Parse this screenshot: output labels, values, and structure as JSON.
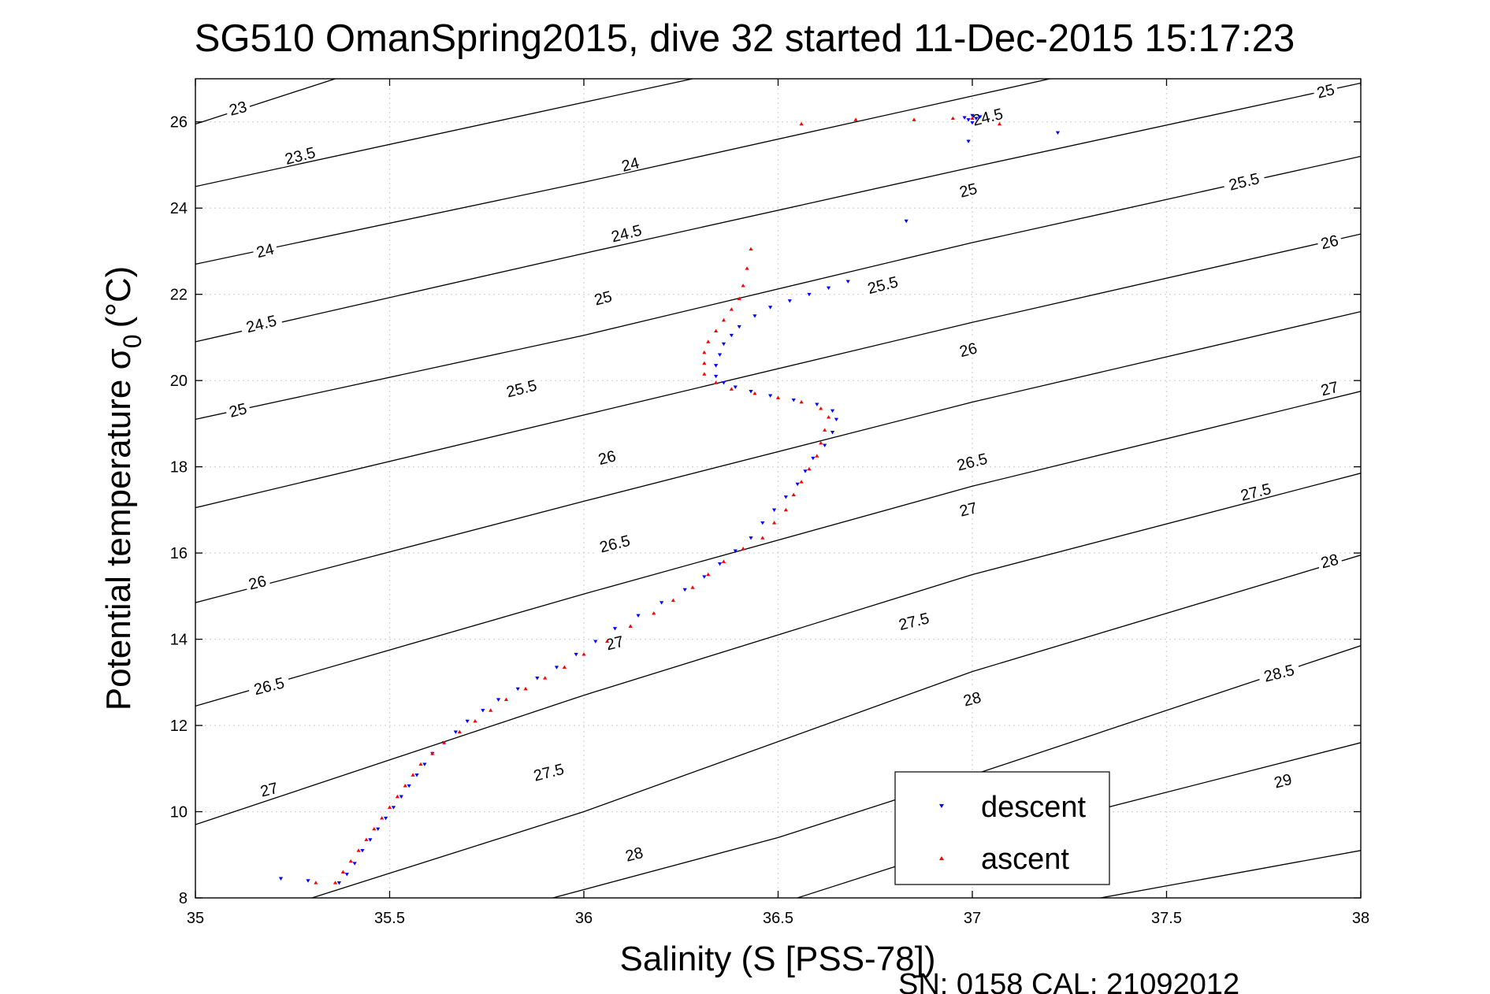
{
  "chart_data": {
    "type": "scatter",
    "title": "SG510 OmanSpring2015, dive 32 started 11-Dec-2015 15:17:23",
    "xlabel": "Salinity (S [PSS-78])",
    "ylabel_main": "Potential temperature σ",
    "ylabel_sub": "0",
    "ylabel_unit": "(°C)",
    "footer": "SN: 0158  CAL: 21092012",
    "xlim": [
      35,
      38
    ],
    "ylim": [
      8,
      27
    ],
    "xticks": [
      35,
      35.5,
      36,
      36.5,
      37,
      37.5,
      38
    ],
    "xtick_labels": [
      "35",
      "35.5",
      "36",
      "36.5",
      "37",
      "37.5",
      "38"
    ],
    "yticks": [
      8,
      10,
      12,
      14,
      16,
      18,
      20,
      22,
      24,
      26
    ],
    "ytick_labels": [
      "8",
      "10",
      "12",
      "14",
      "16",
      "18",
      "20",
      "22",
      "24",
      "26"
    ],
    "grid": true,
    "legend_position": "bottom-right",
    "density_contours": [
      {
        "label": "23",
        "points": [
          [
            35,
            25.95
          ],
          [
            35.36,
            27
          ]
        ]
      },
      {
        "label": "23.5",
        "points": [
          [
            35,
            24.5
          ],
          [
            36.28,
            27
          ]
        ]
      },
      {
        "label": "24",
        "points": [
          [
            35,
            22.7
          ],
          [
            36.0,
            24.6
          ],
          [
            37.0,
            26.6
          ],
          [
            37.2,
            27
          ]
        ]
      },
      {
        "label": "24.5",
        "points": [
          [
            35,
            20.9
          ],
          [
            36.0,
            22.95
          ],
          [
            37.0,
            24.95
          ],
          [
            38,
            26.9
          ]
        ]
      },
      {
        "label": "25",
        "points": [
          [
            35,
            19.1
          ],
          [
            36.0,
            21.05
          ],
          [
            37.0,
            23.2
          ],
          [
            38,
            25.2
          ]
        ]
      },
      {
        "label": "25.5",
        "points": [
          [
            35,
            17.05
          ],
          [
            36.0,
            19.2
          ],
          [
            37.0,
            21.35
          ],
          [
            38,
            23.4
          ]
        ]
      },
      {
        "label": "26",
        "points": [
          [
            35,
            14.85
          ],
          [
            36.0,
            17.2
          ],
          [
            37.0,
            19.5
          ],
          [
            38,
            21.6
          ]
        ]
      },
      {
        "label": "26.5",
        "points": [
          [
            35,
            12.45
          ],
          [
            36.0,
            15.05
          ],
          [
            37.0,
            17.55
          ],
          [
            38,
            19.75
          ]
        ]
      },
      {
        "label": "27",
        "points": [
          [
            35,
            9.7
          ],
          [
            36.0,
            12.7
          ],
          [
            37.0,
            15.5
          ],
          [
            38,
            17.85
          ]
        ]
      },
      {
        "label": "27.5",
        "points": [
          [
            35.3,
            8
          ],
          [
            36.0,
            10.0
          ],
          [
            37.0,
            13.25
          ],
          [
            38,
            15.95
          ]
        ]
      },
      {
        "label": "28",
        "points": [
          [
            35.92,
            8
          ],
          [
            36.5,
            9.4
          ],
          [
            37.0,
            10.85
          ],
          [
            38,
            13.85
          ]
        ]
      },
      {
        "label": "28.5",
        "points": [
          [
            36.55,
            8
          ],
          [
            37.0,
            9.3
          ],
          [
            38,
            11.6
          ]
        ]
      },
      {
        "label": "29",
        "points": [
          [
            37.33,
            8
          ],
          [
            38,
            9.1
          ]
        ]
      }
    ],
    "contour_labels": [
      {
        "text": "23",
        "s": 35.11,
        "t": 26.3
      },
      {
        "text": "23.5",
        "s": 35.27,
        "t": 25.2
      },
      {
        "text": "24",
        "s": 36.12,
        "t": 25.0
      },
      {
        "text": "24.5",
        "s": 37.04,
        "t": 26.1
      },
      {
        "text": "25",
        "s": 37.91,
        "t": 26.7
      },
      {
        "text": "24",
        "s": 35.18,
        "t": 23.0
      },
      {
        "text": "24.5",
        "s": 36.11,
        "t": 23.4
      },
      {
        "text": "25",
        "s": 36.99,
        "t": 24.4
      },
      {
        "text": "25.5",
        "s": 37.7,
        "t": 24.6
      },
      {
        "text": "24.5",
        "s": 35.17,
        "t": 21.3
      },
      {
        "text": "25",
        "s": 36.05,
        "t": 21.9
      },
      {
        "text": "25.5",
        "s": 36.77,
        "t": 22.2
      },
      {
        "text": "26",
        "s": 37.92,
        "t": 23.2
      },
      {
        "text": "25",
        "s": 35.11,
        "t": 19.3
      },
      {
        "text": "25.5",
        "s": 35.84,
        "t": 19.8
      },
      {
        "text": "26",
        "s": 36.99,
        "t": 20.7
      },
      {
        "text": "27",
        "s": 37.92,
        "t": 19.8
      },
      {
        "text": "26",
        "s": 36.06,
        "t": 18.2
      },
      {
        "text": "26.5",
        "s": 37.0,
        "t": 18.1
      },
      {
        "text": "27.5",
        "s": 37.73,
        "t": 17.4
      },
      {
        "text": "26",
        "s": 35.16,
        "t": 15.3
      },
      {
        "text": "26.5",
        "s": 36.08,
        "t": 16.2
      },
      {
        "text": "27",
        "s": 36.99,
        "t": 17.0
      },
      {
        "text": "28",
        "s": 37.92,
        "t": 15.8
      },
      {
        "text": "26.5",
        "s": 35.19,
        "t": 12.9
      },
      {
        "text": "27",
        "s": 36.08,
        "t": 13.9
      },
      {
        "text": "27.5",
        "s": 36.85,
        "t": 14.4
      },
      {
        "text": "28.5",
        "s": 37.79,
        "t": 13.2
      },
      {
        "text": "27",
        "s": 35.19,
        "t": 10.5
      },
      {
        "text": "27.5",
        "s": 35.91,
        "t": 10.9
      },
      {
        "text": "28",
        "s": 37.0,
        "t": 12.6
      },
      {
        "text": "29",
        "s": 37.8,
        "t": 10.7
      },
      {
        "text": "28",
        "s": 36.13,
        "t": 9.0
      }
    ],
    "series": [
      {
        "name": "descent",
        "color": "#0000ff",
        "marker": "triangle-down",
        "points": [
          [
            35.37,
            8.35
          ],
          [
            35.39,
            8.55
          ],
          [
            35.41,
            8.8
          ],
          [
            35.43,
            9.1
          ],
          [
            35.45,
            9.35
          ],
          [
            35.47,
            9.6
          ],
          [
            35.49,
            9.85
          ],
          [
            35.51,
            10.1
          ],
          [
            35.53,
            10.35
          ],
          [
            35.55,
            10.6
          ],
          [
            35.57,
            10.85
          ],
          [
            35.59,
            11.1
          ],
          [
            35.61,
            11.35
          ],
          [
            35.64,
            11.6
          ],
          [
            35.67,
            11.85
          ],
          [
            35.7,
            12.1
          ],
          [
            35.74,
            12.35
          ],
          [
            35.78,
            12.6
          ],
          [
            35.83,
            12.85
          ],
          [
            35.88,
            13.1
          ],
          [
            35.93,
            13.35
          ],
          [
            35.98,
            13.65
          ],
          [
            36.03,
            13.95
          ],
          [
            36.08,
            14.25
          ],
          [
            36.14,
            14.55
          ],
          [
            36.2,
            14.85
          ],
          [
            36.26,
            15.15
          ],
          [
            36.31,
            15.45
          ],
          [
            36.35,
            15.75
          ],
          [
            36.39,
            16.05
          ],
          [
            36.43,
            16.35
          ],
          [
            36.46,
            16.7
          ],
          [
            36.49,
            17.0
          ],
          [
            36.52,
            17.3
          ],
          [
            36.55,
            17.6
          ],
          [
            36.57,
            17.9
          ],
          [
            36.59,
            18.2
          ],
          [
            36.62,
            18.5
          ],
          [
            36.64,
            18.8
          ],
          [
            36.65,
            19.1
          ],
          [
            36.64,
            19.3
          ],
          [
            36.6,
            19.45
          ],
          [
            36.54,
            19.55
          ],
          [
            36.48,
            19.65
          ],
          [
            36.43,
            19.75
          ],
          [
            36.39,
            19.85
          ],
          [
            36.36,
            19.95
          ],
          [
            36.34,
            20.1
          ],
          [
            36.34,
            20.35
          ],
          [
            36.35,
            20.6
          ],
          [
            36.36,
            20.85
          ],
          [
            36.38,
            21.05
          ],
          [
            36.4,
            21.25
          ],
          [
            36.44,
            21.5
          ],
          [
            36.48,
            21.7
          ],
          [
            36.53,
            21.85
          ],
          [
            36.58,
            22.0
          ],
          [
            36.63,
            22.15
          ],
          [
            36.68,
            22.3
          ],
          [
            35.22,
            8.45
          ],
          [
            35.29,
            8.4
          ],
          [
            36.83,
            23.7
          ],
          [
            36.99,
            25.55
          ],
          [
            37.22,
            25.75
          ],
          [
            36.98,
            26.1
          ],
          [
            37.0,
            26.15
          ],
          [
            37.01,
            26.08
          ],
          [
            37.02,
            26.12
          ],
          [
            36.99,
            26.05
          ],
          [
            37.0,
            25.98
          ]
        ]
      },
      {
        "name": "ascent",
        "color": "#ff0000",
        "marker": "triangle-up",
        "points": [
          [
            35.36,
            8.35
          ],
          [
            35.38,
            8.6
          ],
          [
            35.4,
            8.85
          ],
          [
            35.42,
            9.1
          ],
          [
            35.44,
            9.35
          ],
          [
            35.46,
            9.6
          ],
          [
            35.48,
            9.85
          ],
          [
            35.5,
            10.1
          ],
          [
            35.52,
            10.35
          ],
          [
            35.54,
            10.6
          ],
          [
            35.56,
            10.85
          ],
          [
            35.58,
            11.1
          ],
          [
            35.61,
            11.35
          ],
          [
            35.64,
            11.6
          ],
          [
            35.68,
            11.85
          ],
          [
            35.72,
            12.1
          ],
          [
            35.76,
            12.35
          ],
          [
            35.8,
            12.6
          ],
          [
            35.85,
            12.85
          ],
          [
            35.9,
            13.1
          ],
          [
            35.95,
            13.35
          ],
          [
            36.0,
            13.65
          ],
          [
            36.06,
            13.95
          ],
          [
            36.12,
            14.3
          ],
          [
            36.18,
            14.6
          ],
          [
            36.23,
            14.9
          ],
          [
            36.28,
            15.2
          ],
          [
            36.32,
            15.5
          ],
          [
            36.36,
            15.8
          ],
          [
            36.41,
            16.1
          ],
          [
            36.46,
            16.35
          ],
          [
            36.49,
            16.7
          ],
          [
            36.52,
            17.0
          ],
          [
            36.54,
            17.35
          ],
          [
            36.56,
            17.65
          ],
          [
            36.58,
            17.95
          ],
          [
            36.6,
            18.25
          ],
          [
            36.61,
            18.55
          ],
          [
            36.62,
            18.85
          ],
          [
            36.63,
            19.15
          ],
          [
            36.61,
            19.35
          ],
          [
            36.56,
            19.5
          ],
          [
            36.5,
            19.6
          ],
          [
            36.44,
            19.7
          ],
          [
            36.38,
            19.8
          ],
          [
            36.34,
            19.95
          ],
          [
            36.31,
            20.15
          ],
          [
            36.31,
            20.4
          ],
          [
            36.31,
            20.65
          ],
          [
            36.32,
            20.9
          ],
          [
            36.34,
            21.15
          ],
          [
            36.36,
            21.4
          ],
          [
            36.38,
            21.65
          ],
          [
            36.4,
            21.9
          ],
          [
            36.41,
            22.2
          ],
          [
            36.42,
            22.6
          ],
          [
            36.43,
            23.05
          ],
          [
            35.31,
            8.35
          ],
          [
            36.56,
            25.95
          ],
          [
            36.7,
            26.05
          ],
          [
            36.85,
            26.05
          ],
          [
            36.95,
            26.08
          ],
          [
            37.0,
            26.08
          ],
          [
            37.07,
            25.95
          ]
        ]
      }
    ]
  }
}
